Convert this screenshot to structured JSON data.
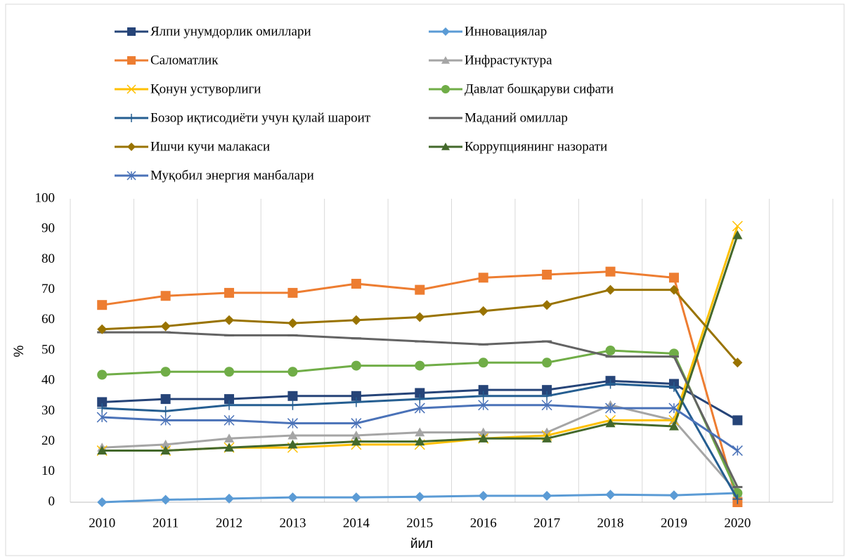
{
  "chart_data": {
    "type": "line",
    "x_label": "йил",
    "y_label": "%",
    "categories": [
      "2010",
      "2011",
      "2012",
      "2013",
      "2014",
      "2015",
      "2016",
      "2017",
      "2018",
      "2019",
      "2020",
      null
    ],
    "ylim": [
      0,
      100
    ],
    "yticks": [
      0,
      10,
      20,
      30,
      40,
      50,
      60,
      70,
      80,
      90,
      100
    ],
    "grid": "x",
    "series": [
      {
        "name": "Ялпи унумдорлик омиллари",
        "color": "#264478",
        "marker": "square",
        "values": [
          33,
          34,
          34,
          35,
          35,
          36,
          37,
          37,
          40,
          39,
          27,
          null
        ]
      },
      {
        "name": "Инновациялар",
        "color": "#5b9bd5",
        "marker": "diamond",
        "values": [
          0,
          0.8,
          1.2,
          1.6,
          1.6,
          1.8,
          2.1,
          2.1,
          2.5,
          2.3,
          3,
          null
        ]
      },
      {
        "name": "Саломатлик",
        "color": "#ed7d31",
        "marker": "square",
        "values": [
          65,
          68,
          69,
          69,
          72,
          70,
          74,
          75,
          76,
          74,
          0,
          null
        ]
      },
      {
        "name": "Инфрастуктура",
        "color": "#a5a5a5",
        "marker": "triangle",
        "values": [
          18,
          19,
          21,
          22,
          22,
          23,
          23,
          23,
          32,
          27,
          3,
          null
        ]
      },
      {
        "name": "Қонун устуворлиги",
        "color": "#ffc000",
        "marker": "x",
        "values": [
          17,
          17,
          18,
          18,
          19,
          19,
          21,
          22,
          27,
          27,
          91,
          null
        ]
      },
      {
        "name": "Давлат бошқаруви сифати",
        "color": "#70ad47",
        "marker": "circle",
        "values": [
          42,
          43,
          43,
          43,
          45,
          45,
          46,
          46,
          50,
          49,
          3,
          null
        ]
      },
      {
        "name": "Бозор иқтисодиёти учун қулай шароит",
        "color": "#255e91",
        "marker": "plus",
        "values": [
          31,
          30,
          32,
          32,
          33,
          34,
          35,
          35,
          39,
          38,
          1,
          null
        ]
      },
      {
        "name": "Маданий  омиллар",
        "color": "#636363",
        "marker": "dash",
        "values": [
          56,
          56,
          55,
          55,
          54,
          53,
          52,
          53,
          48,
          48,
          5,
          null
        ]
      },
      {
        "name": "Ишчи кучи малакаси",
        "color": "#997300",
        "marker": "diamond",
        "values": [
          57,
          58,
          60,
          59,
          60,
          61,
          63,
          65,
          70,
          70,
          46,
          null
        ]
      },
      {
        "name": "Коррупциянинг назорати",
        "color": "#43682b",
        "marker": "triangle",
        "values": [
          17,
          17,
          18,
          19,
          20,
          20,
          21,
          21,
          26,
          25,
          88,
          null
        ]
      },
      {
        "name": "Муқобил энергия манбалари",
        "color": "#4a72b8",
        "marker": "star",
        "values": [
          28,
          27,
          27,
          26,
          26,
          31,
          32,
          32,
          31,
          31,
          17,
          null
        ]
      }
    ]
  }
}
